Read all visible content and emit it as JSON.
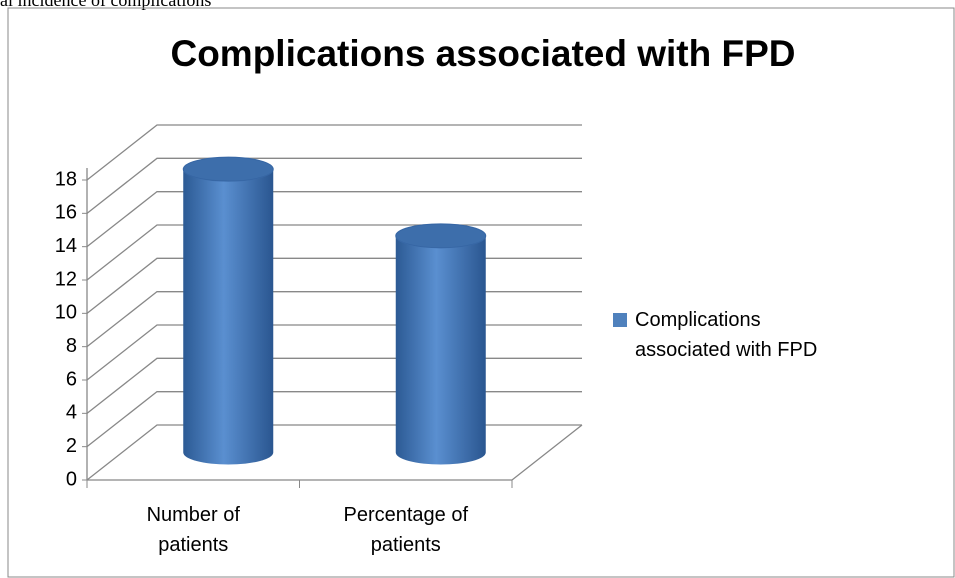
{
  "caption": "al incidence of complications",
  "chart_data": {
    "type": "bar3d",
    "title": "Complications associated with FPD",
    "categories": [
      "Number of patients",
      "Percentage of patients"
    ],
    "series": [
      {
        "name": "Complications associated with FPD",
        "color": "#4f81bd",
        "values": [
          17,
          13
        ]
      }
    ],
    "ylim": [
      0,
      18
    ],
    "yticks": [
      0,
      2,
      4,
      6,
      8,
      10,
      12,
      14,
      16,
      18
    ],
    "grid": true,
    "legend": "right"
  }
}
